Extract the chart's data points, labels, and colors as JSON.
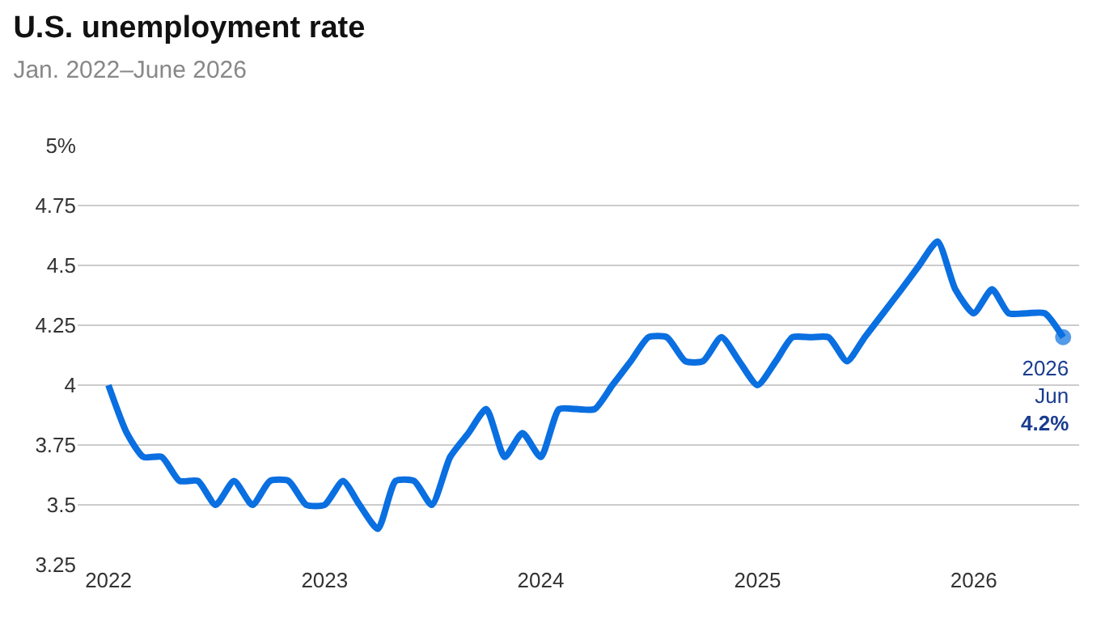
{
  "chart_data": {
    "type": "line",
    "title": "U.S. unemployment rate",
    "subtitle": "Jan. 2022–June 2026",
    "x": [
      "2022-01",
      "2022-02",
      "2022-03",
      "2022-04",
      "2022-05",
      "2022-06",
      "2022-07",
      "2022-08",
      "2022-09",
      "2022-10",
      "2022-11",
      "2022-12",
      "2023-01",
      "2023-02",
      "2023-03",
      "2023-04",
      "2023-05",
      "2023-06",
      "2023-07",
      "2023-08",
      "2023-09",
      "2023-10",
      "2023-11",
      "2023-12",
      "2024-01",
      "2024-02",
      "2024-03",
      "2024-04",
      "2024-05",
      "2024-06",
      "2024-07",
      "2024-08",
      "2024-09",
      "2024-10",
      "2024-11",
      "2024-12",
      "2025-01",
      "2025-02",
      "2025-03",
      "2025-04",
      "2025-05",
      "2025-06",
      "2025-07",
      "2025-08",
      "2025-09",
      "2025-10",
      "2025-11",
      "2025-12",
      "2026-01",
      "2026-02",
      "2026-03",
      "2026-04",
      "2026-05",
      "2026-06"
    ],
    "series": [
      {
        "color": "#0a6fe0",
        "values": [
          4.0,
          3.8,
          3.7,
          3.7,
          3.6,
          3.6,
          3.5,
          3.6,
          3.5,
          3.6,
          3.6,
          3.5,
          3.5,
          3.6,
          3.5,
          3.4,
          3.6,
          3.6,
          3.5,
          3.7,
          3.8,
          3.9,
          3.7,
          3.8,
          3.7,
          3.9,
          3.9,
          3.9,
          4.0,
          4.1,
          4.2,
          4.2,
          4.1,
          4.1,
          4.2,
          4.1,
          4.0,
          4.1,
          4.2,
          4.2,
          4.2,
          4.1,
          4.2,
          4.3,
          4.4,
          4.5,
          4.6,
          4.4,
          4.3,
          4.4,
          4.3,
          4.3,
          4.3,
          4.2
        ]
      }
    ],
    "xlim": [
      "2021-11-10",
      "2026-06-28"
    ],
    "xticks": [
      {
        "value": "2022-01",
        "label": "2022"
      },
      {
        "value": "2023-01",
        "label": "2023"
      },
      {
        "value": "2024-01",
        "label": "2024"
      },
      {
        "value": "2025-01",
        "label": "2025"
      },
      {
        "value": "2026-01",
        "label": "2026"
      }
    ],
    "ylim": [
      3.25,
      5
    ],
    "yticks": [
      3.25,
      3.5,
      3.75,
      4,
      4.25,
      4.5,
      4.75,
      {
        "value": 5,
        "label": "5%"
      }
    ],
    "grid": "y",
    "marker": "none",
    "line_style": "solid",
    "annotations": [
      {
        "text": "2026\nJun\n4.2%",
        "x": "2026-06",
        "y": 4.2
      }
    ]
  }
}
